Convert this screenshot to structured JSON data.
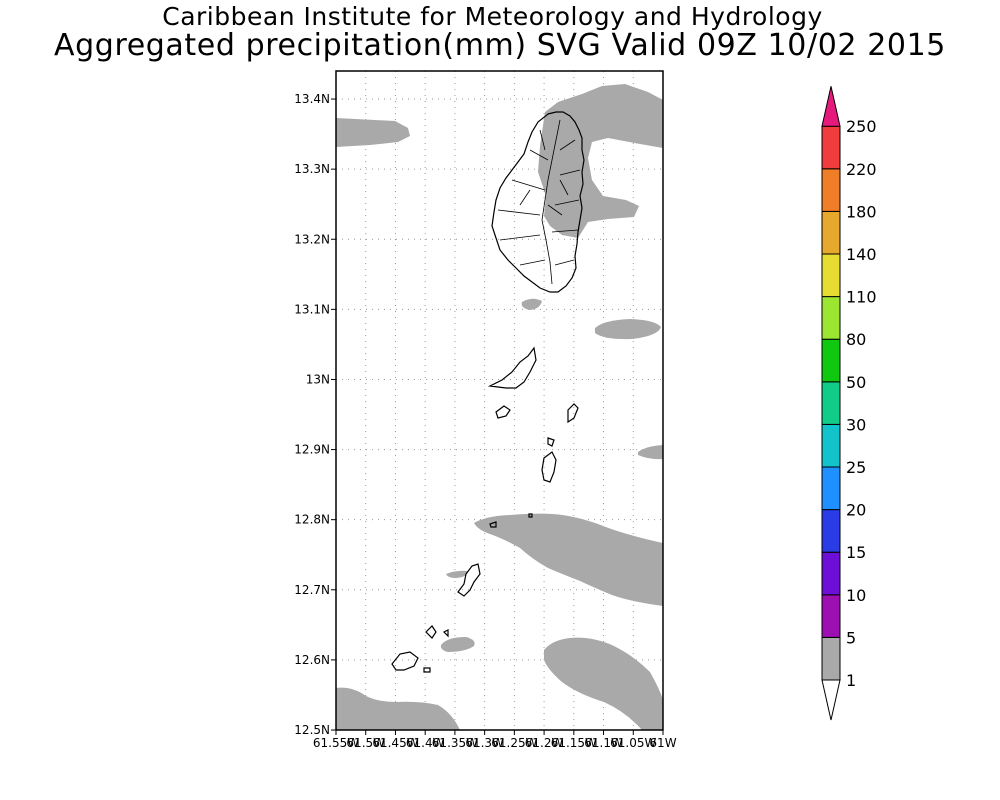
{
  "title": "Caribbean Institute for Meteorology and Hydrology",
  "subtitle": "Aggregated precipitation(mm) SVG Valid 09Z 10/02 2015",
  "map": {
    "lat_range": [
      12.5,
      13.44
    ],
    "lon_range": [
      -61.55,
      -61.0
    ],
    "lat_labels": [
      "13.4N",
      "13.3N",
      "13.2N",
      "13.1N",
      "13N",
      "12.9N",
      "12.8N",
      "12.7N",
      "12.6N",
      "12.5N"
    ],
    "lon_labels": [
      "61.55W",
      "61.5W",
      "61.45W",
      "61.4W",
      "61.35W",
      "61.3W",
      "61.25W",
      "61.2W",
      "61.15W",
      "61.1W",
      "61.05W",
      "61W"
    ],
    "grid": true,
    "precip_fill_color": "#a9a9a9",
    "coastline_color": "#000000"
  },
  "colorbar": {
    "levels": [
      "1",
      "5",
      "10",
      "15",
      "20",
      "25",
      "30",
      "50",
      "80",
      "110",
      "140",
      "180",
      "220",
      "250"
    ],
    "colors": [
      "#a9a9a9",
      "#9c0fb0",
      "#6d0fd6",
      "#2a3ce6",
      "#1e90ff",
      "#12c3cc",
      "#10cc88",
      "#10c810",
      "#9ce632",
      "#e6dc32",
      "#e6a82d",
      "#f07d28",
      "#f03c3c",
      "#e6197d"
    ]
  }
}
